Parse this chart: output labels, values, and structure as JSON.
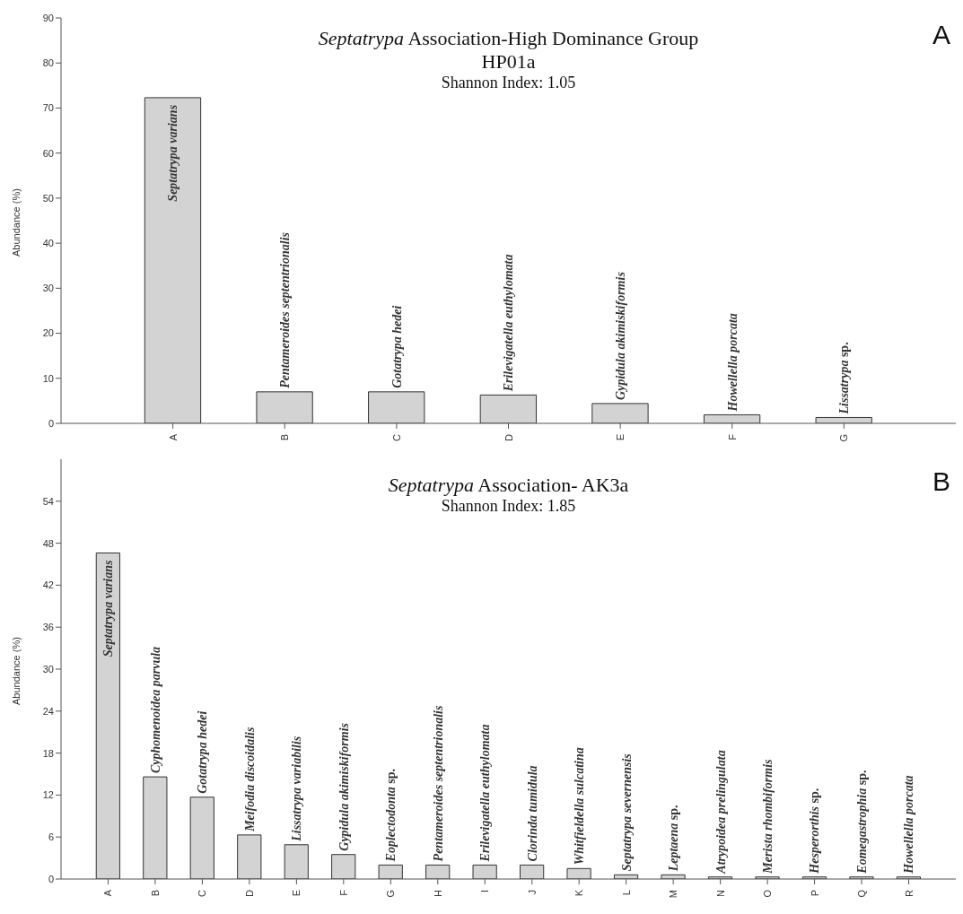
{
  "chart_data": [
    {
      "type": "bar",
      "title": "Septatrypa Association-High Dominance Group",
      "subtitle": "HP01a\nShannon Index: 1.05",
      "ylabel": "Abundance (%)",
      "categories": [
        "A",
        "B",
        "C",
        "D",
        "E",
        "F",
        "G"
      ],
      "values": [
        72.3,
        7,
        7,
        6.3,
        4.4,
        1.9,
        1.3
      ],
      "color": "#d3d3d3",
      "ylim": [
        0,
        90
      ],
      "yticks": [
        0,
        10,
        20,
        30,
        40,
        50,
        60,
        70,
        80,
        90
      ],
      "grid": false,
      "legend": false,
      "annotations": [
        "A",
        {
          "text": "Septatrypa varians",
          "x": "A",
          "y": 72.3
        },
        {
          "text": "Pentameroides septentrionalis",
          "x": "B",
          "y": 7
        },
        {
          "text": "Gotatrypa hedei",
          "x": "C",
          "y": 7
        },
        {
          "text": "Erilevigatella euthylomata",
          "x": "D",
          "y": 6.3
        },
        {
          "text": "Gypidula akimiskiformis",
          "x": "E",
          "y": 4.4
        },
        {
          "text": "Howellella porcata",
          "x": "F",
          "y": 1.9
        },
        {
          "text": "Lissatrypa sp.",
          "x": "G",
          "y": 1.3
        }
      ]
    },
    {
      "type": "bar",
      "title": "Septatrypa Association- AK3a",
      "subtitle": "Shannon Index: 1.85",
      "ylabel": "Abundance (%)",
      "categories": [
        "A",
        "B",
        "C",
        "D",
        "E",
        "F",
        "G",
        "H",
        "I",
        "J",
        "K",
        "L",
        "M",
        "N",
        "O",
        "P",
        "Q",
        "R"
      ],
      "values": [
        46.6,
        14.6,
        11.7,
        6.3,
        4.9,
        3.5,
        2,
        2,
        2,
        2,
        1.5,
        0.6,
        0.6,
        0.3,
        0.3,
        0.3,
        0.3,
        0.3
      ],
      "color": "#d3d3d3",
      "ylim": [
        0,
        60
      ],
      "yticks": [
        0,
        6,
        12,
        18,
        24,
        30,
        36,
        42,
        48,
        54
      ],
      "grid": false,
      "legend": false,
      "annotations": [
        "B",
        {
          "text": "Septatrypa varians",
          "x": "A",
          "y": 46.6
        },
        {
          "text": "Cyphomenoidea parvula",
          "x": "B",
          "y": 14.6
        },
        {
          "text": "Gotatrypa hedei",
          "x": "C",
          "y": 11.7
        },
        {
          "text": "Meifodia discoidalis",
          "x": "D",
          "y": 6.3
        },
        {
          "text": "Lissatrypa variabilis",
          "x": "E",
          "y": 4.9
        },
        {
          "text": "Gypidula akimiskiformis",
          "x": "F",
          "y": 3.5
        },
        {
          "text": "Eoplectodonta sp.",
          "x": "G",
          "y": 2
        },
        {
          "text": "Pentameroides septentrionalis",
          "x": "H",
          "y": 2
        },
        {
          "text": "Erilevigatella euthylomata",
          "x": "I",
          "y": 2
        },
        {
          "text": "Clorinda tumidula",
          "x": "J",
          "y": 2
        },
        {
          "text": "Whitfieldella sulcatina",
          "x": "K",
          "y": 1.5
        },
        {
          "text": "Septatrypa severnensis",
          "x": "L",
          "y": 0.6
        },
        {
          "text": "Leptaena sp.",
          "x": "M",
          "y": 0.6
        },
        {
          "text": "Atrypoidea prelingulata",
          "x": "N",
          "y": 0.3
        },
        {
          "text": "Merista rhombiformis",
          "x": "O",
          "y": 0.3
        },
        {
          "text": "Hesperorthis sp.",
          "x": "P",
          "y": 0.3
        },
        {
          "text": "Eomegastrophia sp.",
          "x": "Q",
          "y": 0.3
        },
        {
          "text": "Howellella porcata",
          "x": "R",
          "y": 0.3
        }
      ]
    }
  ]
}
